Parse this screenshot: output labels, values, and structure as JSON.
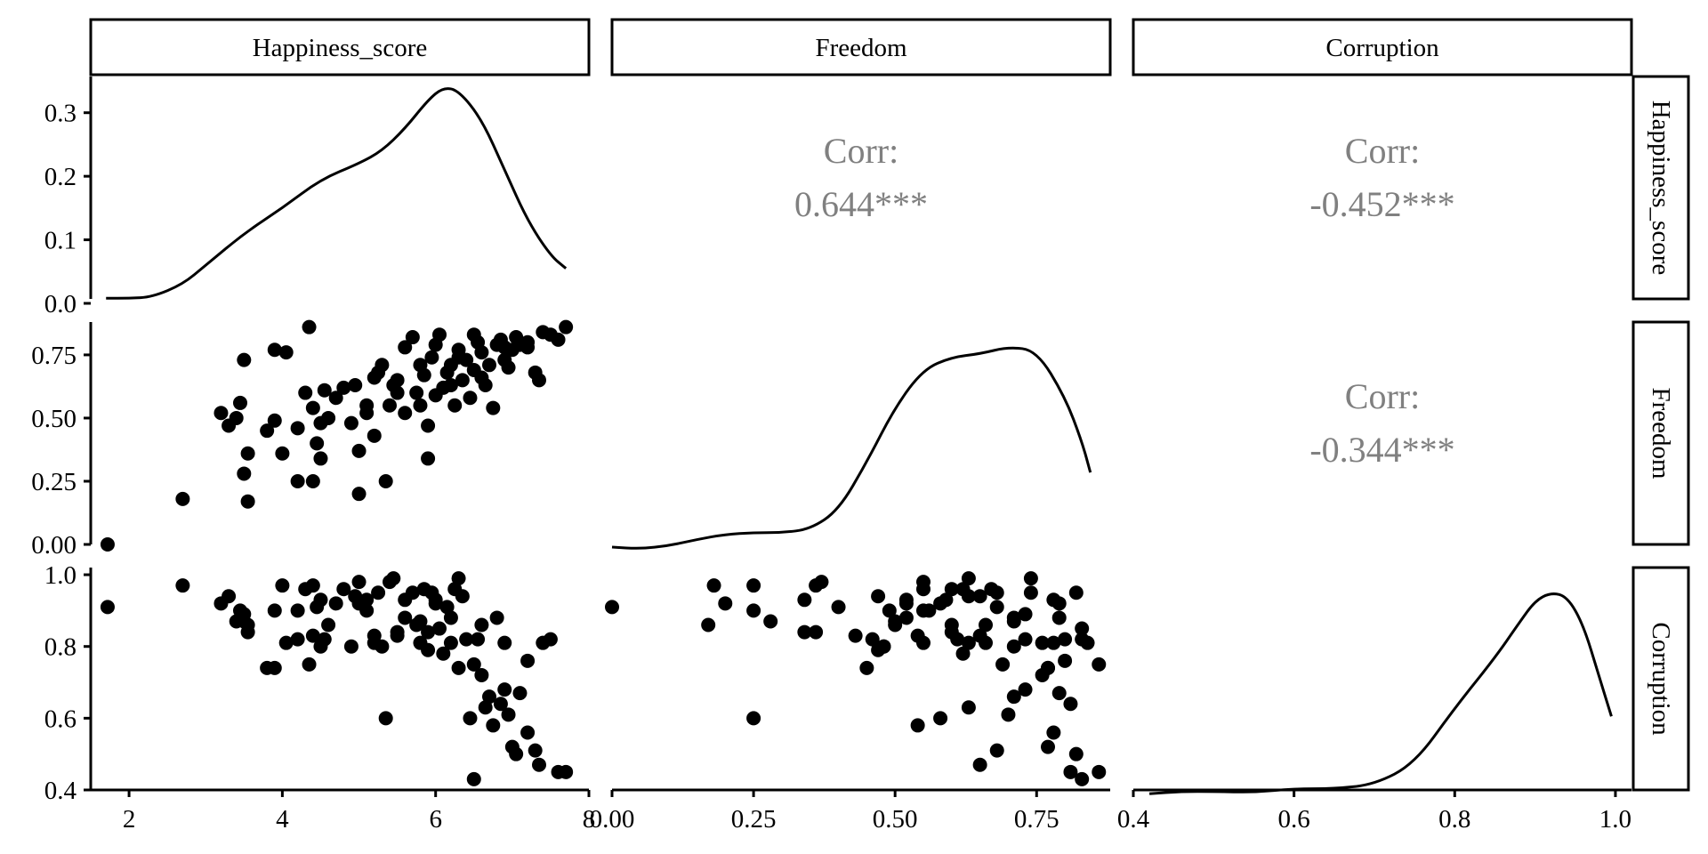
{
  "chart_data": {
    "type": "scatter",
    "variables": [
      "Happiness_score",
      "Freedom",
      "Corruption"
    ],
    "axis_ranges": {
      "Happiness_score": [
        1.5,
        8.0
      ],
      "Freedom": [
        0.0,
        0.88
      ],
      "Corruption": [
        0.4,
        1.02
      ]
    },
    "density_ylim": [
      0.0,
      0.35
    ],
    "tick_labels": {
      "Happiness_score": [
        "2",
        "4",
        "6",
        "8"
      ],
      "Freedom": [
        "0.00",
        "0.25",
        "0.50",
        "0.75"
      ],
      "Corruption": [
        "0.4",
        "0.6",
        "0.8",
        "1.0"
      ],
      "density": [
        "0.0",
        "0.1",
        "0.2",
        "0.3"
      ],
      "freedom_y": [
        "0.00",
        "0.25",
        "0.50",
        "0.75"
      ],
      "corruption_y": [
        "0.4",
        "0.6",
        "0.8",
        "1.0"
      ]
    },
    "correlations": [
      {
        "pair": [
          "Happiness_score",
          "Freedom"
        ],
        "label": "Corr:",
        "value": "0.644***"
      },
      {
        "pair": [
          "Happiness_score",
          "Corruption"
        ],
        "label": "Corr:",
        "value": "-0.452***"
      },
      {
        "pair": [
          "Freedom",
          "Corruption"
        ],
        "label": "Corr:",
        "value": "-0.344***"
      }
    ],
    "densities": {
      "Happiness_score": [
        [
          1.7,
          0.008
        ],
        [
          2.0,
          0.008
        ],
        [
          2.3,
          0.01
        ],
        [
          2.7,
          0.03
        ],
        [
          3.0,
          0.06
        ],
        [
          3.5,
          0.11
        ],
        [
          4.0,
          0.15
        ],
        [
          4.5,
          0.195
        ],
        [
          5.0,
          0.22
        ],
        [
          5.3,
          0.24
        ],
        [
          5.6,
          0.275
        ],
        [
          5.9,
          0.32
        ],
        [
          6.1,
          0.34
        ],
        [
          6.3,
          0.335
        ],
        [
          6.6,
          0.29
        ],
        [
          6.9,
          0.21
        ],
        [
          7.2,
          0.13
        ],
        [
          7.5,
          0.075
        ],
        [
          7.7,
          0.055
        ]
      ],
      "Freedom": [
        [
          0.0,
          0.013
        ],
        [
          0.05,
          0.008
        ],
        [
          0.1,
          0.017
        ],
        [
          0.15,
          0.035
        ],
        [
          0.2,
          0.05
        ],
        [
          0.25,
          0.055
        ],
        [
          0.3,
          0.055
        ],
        [
          0.35,
          0.065
        ],
        [
          0.4,
          0.12
        ],
        [
          0.45,
          0.26
        ],
        [
          0.5,
          0.42
        ],
        [
          0.55,
          0.53
        ],
        [
          0.6,
          0.565
        ],
        [
          0.65,
          0.575
        ],
        [
          0.7,
          0.595
        ],
        [
          0.75,
          0.585
        ],
        [
          0.8,
          0.45
        ],
        [
          0.83,
          0.32
        ],
        [
          0.845,
          0.23
        ]
      ],
      "Corruption": [
        [
          0.42,
          0.012
        ],
        [
          0.46,
          0.02
        ],
        [
          0.5,
          0.02
        ],
        [
          0.55,
          0.017
        ],
        [
          0.6,
          0.03
        ],
        [
          0.65,
          0.03
        ],
        [
          0.7,
          0.045
        ],
        [
          0.75,
          0.12
        ],
        [
          0.8,
          0.32
        ],
        [
          0.85,
          0.5
        ],
        [
          0.88,
          0.625
        ],
        [
          0.9,
          0.705
        ],
        [
          0.92,
          0.735
        ],
        [
          0.94,
          0.72
        ],
        [
          0.96,
          0.62
        ],
        [
          0.98,
          0.43
        ],
        [
          0.995,
          0.29
        ]
      ]
    },
    "points": [
      [
        1.72,
        0.0,
        0.91
      ],
      [
        2.7,
        0.18,
        0.97
      ],
      [
        3.2,
        0.52,
        0.92
      ],
      [
        3.3,
        0.47,
        0.94
      ],
      [
        3.4,
        0.5,
        0.87
      ],
      [
        3.45,
        0.56,
        0.9
      ],
      [
        3.5,
        0.28,
        0.87
      ],
      [
        3.55,
        0.17,
        0.86
      ],
      [
        3.55,
        0.36,
        0.84
      ],
      [
        3.5,
        0.73,
        0.89
      ],
      [
        3.8,
        0.45,
        0.74
      ],
      [
        3.9,
        0.77,
        0.74
      ],
      [
        3.9,
        0.49,
        0.9
      ],
      [
        4.0,
        0.36,
        0.97
      ],
      [
        4.05,
        0.76,
        0.81
      ],
      [
        4.2,
        0.25,
        0.9
      ],
      [
        4.2,
        0.46,
        0.82
      ],
      [
        4.3,
        0.6,
        0.96
      ],
      [
        4.35,
        0.86,
        0.75
      ],
      [
        4.4,
        0.54,
        0.83
      ],
      [
        4.4,
        0.25,
        0.97
      ],
      [
        4.45,
        0.4,
        0.91
      ],
      [
        4.5,
        0.34,
        0.93
      ],
      [
        4.5,
        0.48,
        0.8
      ],
      [
        4.55,
        0.61,
        0.82
      ],
      [
        4.6,
        0.5,
        0.86
      ],
      [
        4.8,
        0.62,
        0.96
      ],
      [
        4.9,
        0.48,
        0.8
      ],
      [
        5.0,
        0.37,
        0.98
      ],
      [
        5.0,
        0.2,
        0.92
      ],
      [
        5.1,
        0.55,
        0.9
      ],
      [
        5.1,
        0.52,
        0.93
      ],
      [
        5.2,
        0.43,
        0.83
      ],
      [
        5.25,
        0.68,
        0.95
      ],
      [
        5.3,
        0.71,
        0.8
      ],
      [
        5.35,
        0.25,
        0.6
      ],
      [
        5.4,
        0.55,
        0.98
      ],
      [
        5.5,
        0.6,
        0.84
      ],
      [
        5.6,
        0.52,
        0.88
      ],
      [
        5.6,
        0.78,
        0.93
      ],
      [
        5.7,
        0.82,
        0.95
      ],
      [
        5.75,
        0.6,
        0.86
      ],
      [
        5.8,
        0.55,
        0.81
      ],
      [
        5.85,
        0.67,
        0.96
      ],
      [
        5.9,
        0.34,
        0.84
      ],
      [
        5.9,
        0.47,
        0.79
      ],
      [
        5.95,
        0.74,
        0.95
      ],
      [
        6.0,
        0.79,
        0.92
      ],
      [
        6.05,
        0.83,
        0.85
      ],
      [
        6.1,
        0.62,
        0.78
      ],
      [
        6.15,
        0.68,
        0.91
      ],
      [
        6.2,
        0.71,
        0.88
      ],
      [
        6.25,
        0.55,
        0.96
      ],
      [
        6.3,
        0.77,
        0.74
      ],
      [
        6.35,
        0.65,
        0.94
      ],
      [
        6.4,
        0.73,
        0.82
      ],
      [
        6.45,
        0.58,
        0.6
      ],
      [
        6.5,
        0.69,
        0.75
      ],
      [
        6.55,
        0.8,
        0.82
      ],
      [
        6.6,
        0.76,
        0.72
      ],
      [
        6.65,
        0.63,
        0.63
      ],
      [
        6.7,
        0.71,
        0.66
      ],
      [
        6.75,
        0.54,
        0.58
      ],
      [
        6.8,
        0.79,
        0.88
      ],
      [
        6.85,
        0.81,
        0.64
      ],
      [
        6.9,
        0.73,
        0.68
      ],
      [
        6.95,
        0.7,
        0.61
      ],
      [
        7.0,
        0.77,
        0.52
      ],
      [
        7.05,
        0.82,
        0.5
      ],
      [
        7.1,
        0.79,
        0.67
      ],
      [
        7.2,
        0.78,
        0.56
      ],
      [
        7.3,
        0.68,
        0.51
      ],
      [
        7.35,
        0.65,
        0.47
      ],
      [
        7.4,
        0.84,
        0.81
      ],
      [
        7.5,
        0.83,
        0.82
      ],
      [
        7.6,
        0.81,
        0.45
      ],
      [
        7.7,
        0.86,
        0.45
      ],
      [
        6.5,
        0.83,
        0.43
      ],
      [
        5.2,
        0.66,
        0.81
      ],
      [
        5.8,
        0.71,
        0.87
      ],
      [
        6.0,
        0.59,
        0.93
      ],
      [
        6.2,
        0.63,
        0.81
      ],
      [
        6.6,
        0.66,
        0.86
      ],
      [
        5.5,
        0.65,
        0.83
      ],
      [
        4.7,
        0.58,
        0.92
      ],
      [
        4.95,
        0.63,
        0.94
      ],
      [
        5.45,
        0.63,
        0.99
      ],
      [
        6.3,
        0.74,
        0.99
      ],
      [
        6.9,
        0.78,
        0.81
      ],
      [
        7.2,
        0.8,
        0.76
      ]
    ]
  }
}
